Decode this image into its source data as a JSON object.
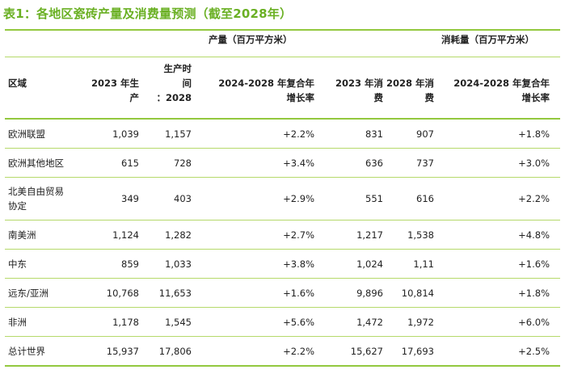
{
  "title": "表1：各地区瓷砖产量及消费量预测（截至2028年）",
  "group_headers": {
    "production": "产量（百万平方米）",
    "consumption": "消耗量（百万平方米）"
  },
  "columns": {
    "region": "区域",
    "prod_2023": [
      "2023 年生",
      "产"
    ],
    "prod_2028": [
      "生产时",
      "间",
      "：2028"
    ],
    "prod_cagr": [
      "2024-2028 年复合年",
      "增长率"
    ],
    "cons_2023": [
      "2023 年消",
      "费"
    ],
    "cons_2028": [
      "2028 年消",
      "费"
    ],
    "cons_cagr": [
      "2024-2028 年复合年",
      "增长率"
    ]
  },
  "rows": [
    {
      "region": [
        "欧洲联盟"
      ],
      "prod_2023": "1,039",
      "prod_2028": "1,157",
      "prod_cagr": "+2.2%",
      "cons_2023": "831",
      "cons_2028": "907",
      "cons_cagr": "+1.8%"
    },
    {
      "region": [
        "欧洲其他地区"
      ],
      "prod_2023": "615",
      "prod_2028": "728",
      "prod_cagr": "+3.4%",
      "cons_2023": "636",
      "cons_2028": "737",
      "cons_cagr": "+3.0%"
    },
    {
      "region": [
        "北美自由贸易",
        "协定"
      ],
      "prod_2023": "349",
      "prod_2028": "403",
      "prod_cagr": "+2.9%",
      "cons_2023": "551",
      "cons_2028": "616",
      "cons_cagr": "+2.2%"
    },
    {
      "region": [
        "南美洲"
      ],
      "prod_2023": "1,124",
      "prod_2028": "1,282",
      "prod_cagr": "+2.7%",
      "cons_2023": "1,217",
      "cons_2028": "1,538",
      "cons_cagr": "+4.8%"
    },
    {
      "region": [
        "中东"
      ],
      "prod_2023": "859",
      "prod_2028": "1,033",
      "prod_cagr": "+3.8%",
      "cons_2023": "1,024",
      "cons_2028": "1,11",
      "cons_cagr": "+1.6%"
    },
    {
      "region": [
        "远东/亚洲"
      ],
      "prod_2023": "10,768",
      "prod_2028": "11,653",
      "prod_cagr": "+1.6%",
      "cons_2023": "9,896",
      "cons_2028": "10,814",
      "cons_cagr": "+1.8%"
    },
    {
      "region": [
        "非洲"
      ],
      "prod_2023": "1,178",
      "prod_2028": "1,545",
      "prod_cagr": "+5.6%",
      "cons_2023": "1,472",
      "cons_2028": "1,972",
      "cons_cagr": "+6.0%"
    },
    {
      "region": [
        "总计世界"
      ],
      "prod_2023": "15,937",
      "prod_2028": "17,806",
      "prod_cagr": "+2.2%",
      "cons_2023": "15,627",
      "cons_2028": "17,693",
      "cons_cagr": "+2.5%"
    }
  ]
}
